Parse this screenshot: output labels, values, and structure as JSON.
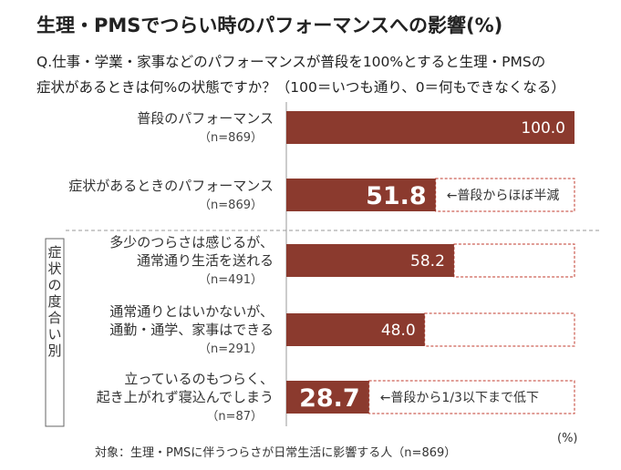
{
  "header": {
    "title": "生理・PMSでつらい時のパフォーマンスへの影響(%)",
    "question_line1": "Q.仕事・学業・家事などのパフォーマンスが普段を100%とすると生理・PMSの",
    "question_line2": "症状があるときは何%の状態ですか？（100＝いつも通り、0＝何もできなくなる）"
  },
  "chart_data": {
    "type": "bar",
    "orientation": "horizontal",
    "categories": [
      [
        "普段のパフォーマンス"
      ],
      [
        "症状があるときのパフォーマンス"
      ],
      [
        "多少のつらさは感じるが、",
        "通常通り生活を送れる"
      ],
      [
        "通常通りとはいかないが、",
        "通勤・通学、家事はできる"
      ],
      [
        "立っているのもつらく、",
        "起き上がれず寝込んでしまう"
      ]
    ],
    "sample_sizes": [
      "（n=869）",
      "（n=869）",
      "（n=491）",
      "（n=291）",
      "（n=87）"
    ],
    "values": [
      100.0,
      51.8,
      58.2,
      48.0,
      28.7
    ],
    "value_labels": [
      "100.0",
      "51.8",
      "58.2",
      "48.0",
      "28.7"
    ],
    "emphasized": [
      false,
      true,
      false,
      false,
      true
    ],
    "annotations": [
      "",
      "←普段からほぼ半減",
      "",
      "",
      "←普段から1/3以下まで低下"
    ],
    "group_label": "症状の度合い別",
    "group_rows": [
      2,
      3,
      4
    ],
    "xlim": [
      0,
      100
    ],
    "unit": "(%)",
    "bar_color": "#8b3a2e",
    "remainder_outline_color": "#c0392b",
    "divider_color": "#999999"
  },
  "footnote": "対象：生理・PMSに伴うつらさが日常生活に影響する人（n=869）"
}
